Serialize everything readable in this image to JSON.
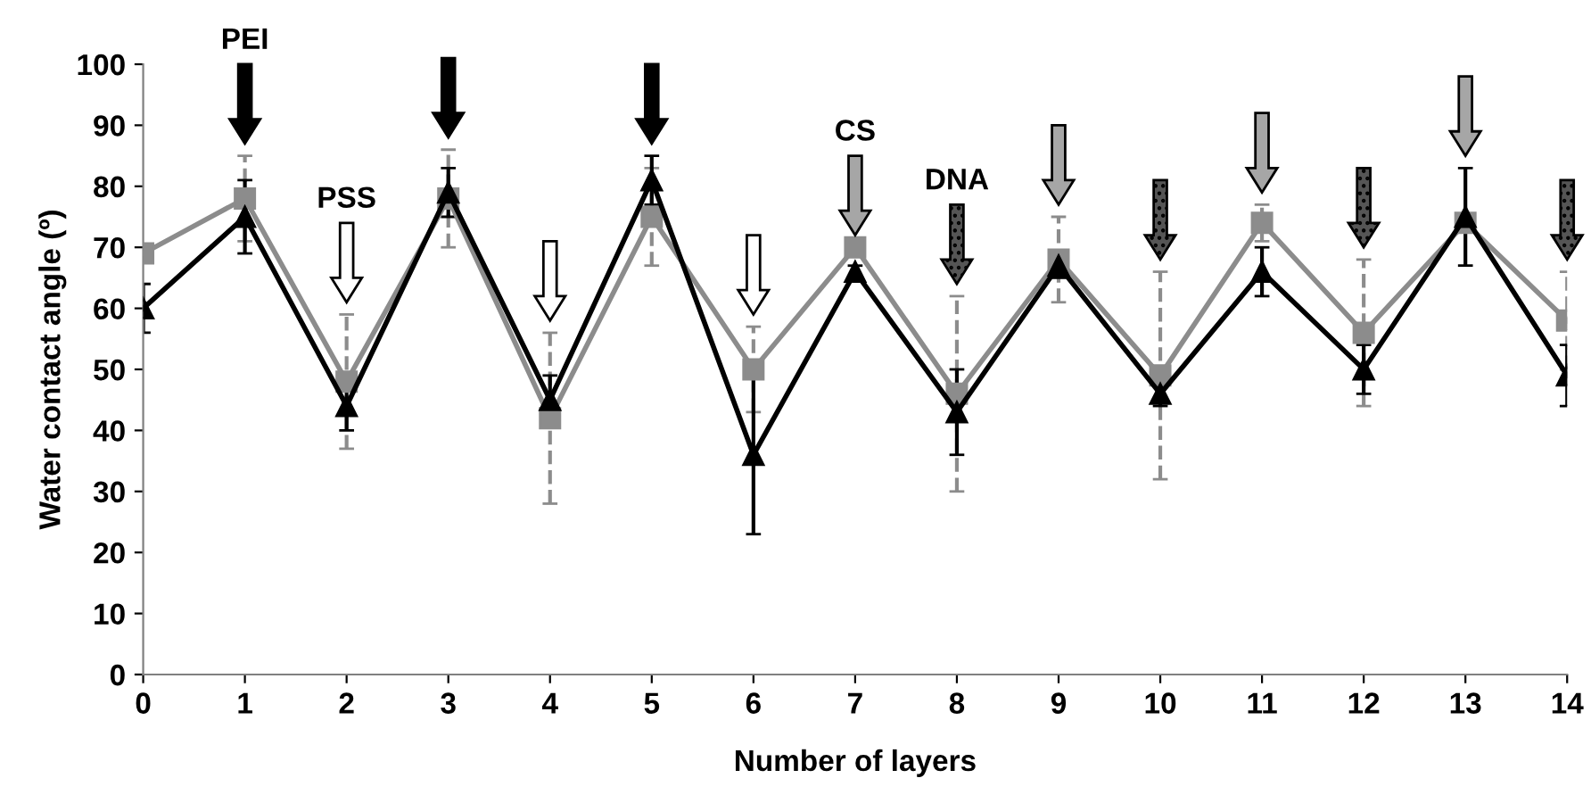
{
  "chart_data": {
    "type": "line",
    "xlabel": "Number of layers",
    "ylabel": "Water contact angle (º)",
    "x": [
      0,
      1,
      2,
      3,
      4,
      5,
      6,
      7,
      8,
      9,
      10,
      11,
      12,
      13,
      14
    ],
    "series": [
      {
        "color": "#8c8c8c",
        "marker": "square",
        "line_style": "solid",
        "values": [
          69,
          78,
          48,
          78,
          42,
          75,
          50,
          70,
          46,
          68,
          49,
          74,
          56,
          74,
          58
        ],
        "errors": [
          null,
          7,
          11,
          8,
          14,
          8,
          7,
          null,
          16,
          7,
          17,
          3,
          12,
          null,
          8
        ]
      },
      {
        "color": "#000000",
        "marker": "triangle",
        "line_style": "solid",
        "values": [
          60,
          75,
          44,
          79,
          45,
          81,
          36,
          66,
          43,
          67,
          46,
          66,
          50,
          75,
          49
        ],
        "errors": [
          4,
          6,
          4,
          4,
          4,
          4,
          13,
          1,
          7,
          2,
          2,
          4,
          4,
          8,
          5
        ]
      }
    ],
    "xlim": [
      0,
      14
    ],
    "ylim": [
      0,
      100
    ],
    "xticks": [
      0,
      1,
      2,
      3,
      4,
      5,
      6,
      7,
      8,
      9,
      10,
      11,
      12,
      13,
      14
    ],
    "yticks": [
      0,
      10,
      20,
      30,
      40,
      50,
      60,
      70,
      80,
      90,
      100
    ],
    "grid": false,
    "legend": false,
    "annotations": [
      "PEI",
      "PSS",
      "CS",
      "DNA"
    ]
  }
}
